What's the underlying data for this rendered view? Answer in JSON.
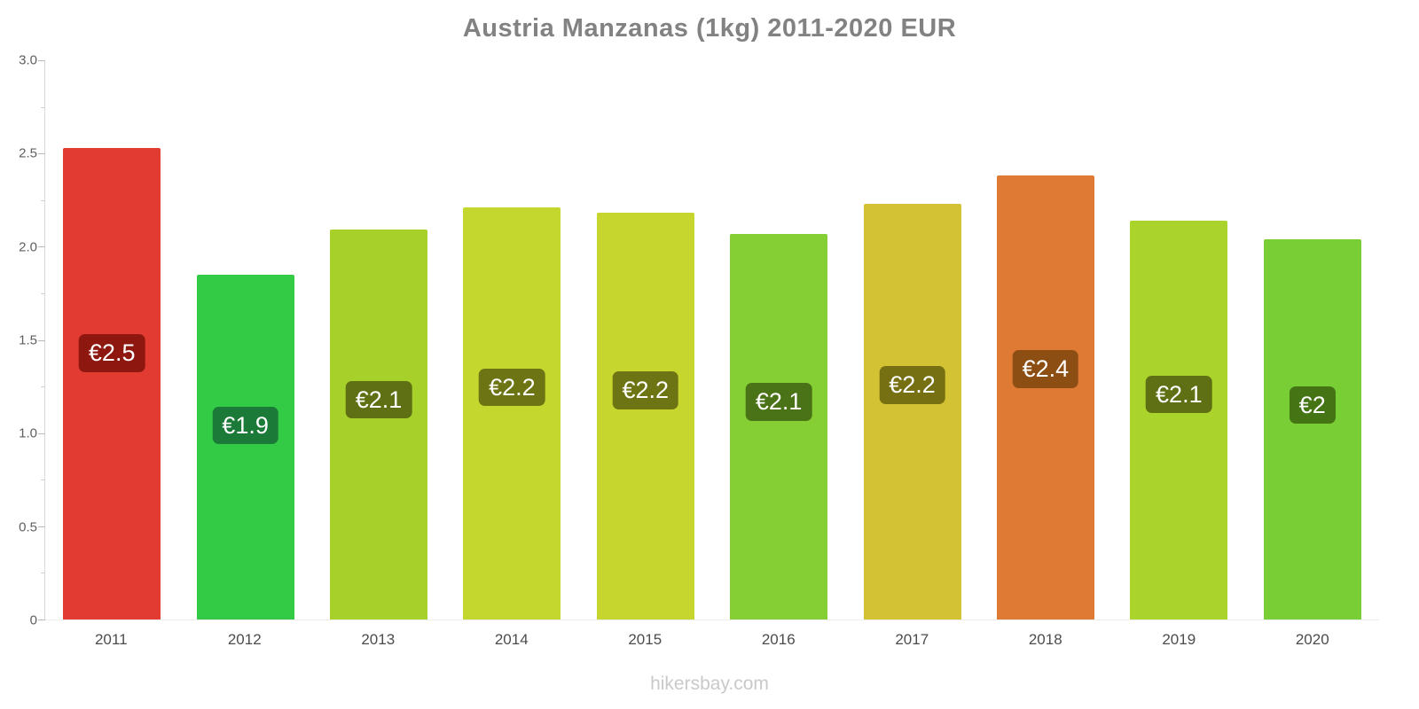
{
  "title": "Austria Manzanas (1kg) 2011-2020 EUR",
  "footer": "hikersbay.com",
  "chart_data": {
    "type": "bar",
    "title": "Austria Manzanas (1kg) 2011-2020 EUR",
    "xlabel": "",
    "ylabel": "",
    "ylim": [
      0,
      3.0
    ],
    "yticks": [
      0,
      0.5,
      1.0,
      1.5,
      2.0,
      2.5,
      3.0
    ],
    "ytick_labels": [
      "0",
      "0.5",
      "1.0",
      "1.5",
      "2.0",
      "2.5",
      "3.0"
    ],
    "minor_tick_step": 0.25,
    "grid": false,
    "legend": false,
    "currency": "EUR",
    "categories": [
      "2011",
      "2012",
      "2013",
      "2014",
      "2015",
      "2016",
      "2017",
      "2018",
      "2019",
      "2020"
    ],
    "values": [
      2.53,
      1.85,
      2.09,
      2.21,
      2.18,
      2.07,
      2.23,
      2.38,
      2.14,
      2.04
    ],
    "labels": [
      "€2.5",
      "€1.9",
      "€2.1",
      "€2.2",
      "€2.2",
      "€2.1",
      "€2.2",
      "€2.4",
      "€2.1",
      "€2"
    ],
    "bar_colors": [
      "#e13b32",
      "#33cb45",
      "#a8d02b",
      "#c4d72e",
      "#c7d52f",
      "#85cf34",
      "#d3c334",
      "#de7a33",
      "#aad32c",
      "#79ce35"
    ],
    "label_bg_colors": [
      "#8e1710",
      "#1b7a38",
      "#5f7014",
      "#6d7413",
      "#6d7413",
      "#4a7217",
      "#767012",
      "#8c4e13",
      "#5f7014",
      "#457414"
    ]
  }
}
